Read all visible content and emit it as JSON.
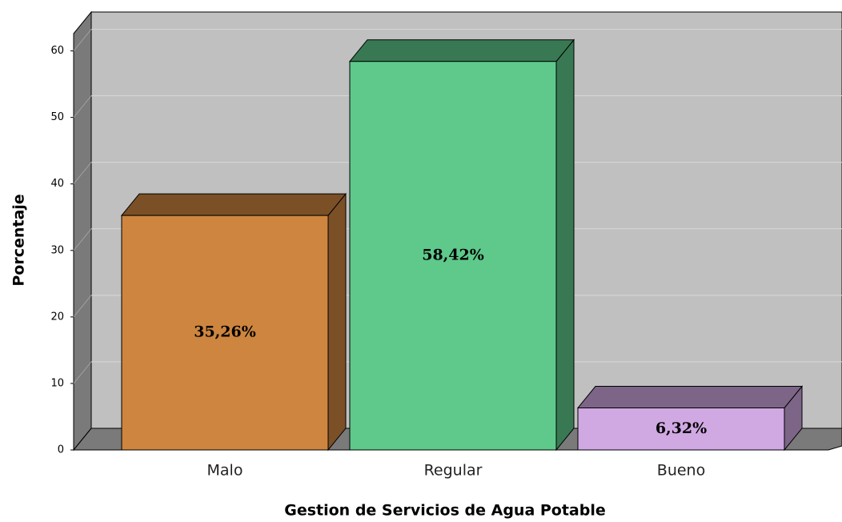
{
  "chart_data": {
    "type": "bar3d",
    "categories": [
      "Malo",
      "Regular",
      "Bueno"
    ],
    "values": [
      35.26,
      58.42,
      6.32
    ],
    "value_labels": [
      "35,26%",
      "58,42%",
      "6,32%"
    ],
    "colors": [
      "#cd853f",
      "#5ec98a",
      "#d0a8e2"
    ],
    "ylabel": "Porcentaje",
    "xlabel": "Gestion de Servicios de Agua Potable",
    "ylim": [
      0,
      62.6
    ],
    "yticks": [
      0,
      10,
      20,
      30,
      40,
      50,
      60
    ],
    "grid": true
  }
}
